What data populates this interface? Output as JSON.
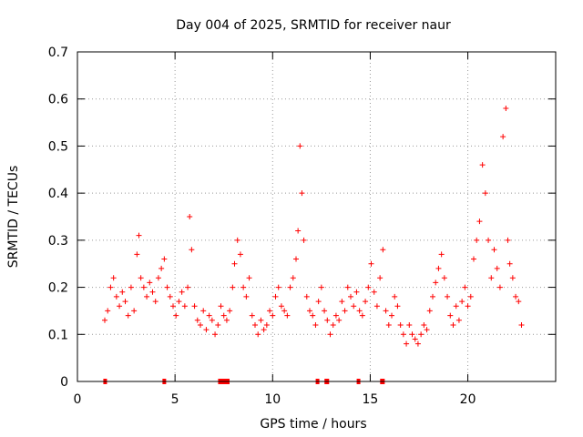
{
  "chart_data": {
    "type": "scatter",
    "title": "Day 004 of 2025, SRMTID for receiver naur",
    "xlabel": "GPS time / hours",
    "ylabel": "SRMTID / TECUs",
    "xlim": [
      0,
      24.5
    ],
    "ylim": [
      0,
      0.7
    ],
    "xticks": [
      0,
      5,
      10,
      15,
      20
    ],
    "xtick_labels": [
      "0",
      "5",
      "10",
      "15",
      "20"
    ],
    "yticks": [
      0,
      0.1,
      0.2,
      0.3,
      0.4,
      0.5,
      0.6,
      0.7
    ],
    "ytick_labels": [
      "0",
      "0.1",
      "0.2",
      "0.3",
      "0.4",
      "0.5",
      "0.6",
      "0.7"
    ],
    "grid": "dotted",
    "marker": "+",
    "color": "#ff0000",
    "series": [
      {
        "name": "SRMTID",
        "x": [
          1.4,
          1.55,
          1.7,
          1.85,
          2.0,
          2.15,
          2.3,
          2.45,
          2.6,
          2.75,
          2.9,
          3.05,
          3.15,
          3.25,
          3.4,
          3.55,
          3.7,
          3.85,
          4.0,
          4.15,
          4.3,
          4.45,
          4.6,
          4.75,
          4.9,
          5.05,
          5.2,
          5.35,
          5.5,
          5.65,
          5.75,
          5.85,
          6.0,
          6.15,
          6.3,
          6.45,
          6.6,
          6.75,
          6.9,
          7.05,
          7.2,
          7.35,
          7.5,
          7.65,
          7.8,
          7.95,
          8.05,
          8.2,
          8.35,
          8.5,
          8.65,
          8.8,
          8.95,
          9.1,
          9.25,
          9.4,
          9.55,
          9.7,
          9.85,
          10.0,
          10.15,
          10.3,
          10.45,
          10.6,
          10.75,
          10.9,
          11.05,
          11.2,
          11.3,
          11.4,
          11.5,
          11.6,
          11.75,
          11.9,
          12.05,
          12.2,
          12.35,
          12.5,
          12.65,
          12.8,
          12.95,
          13.1,
          13.25,
          13.4,
          13.55,
          13.7,
          13.85,
          14.0,
          14.15,
          14.3,
          14.45,
          14.6,
          14.75,
          14.9,
          15.05,
          15.2,
          15.35,
          15.5,
          15.65,
          15.8,
          15.95,
          16.1,
          16.25,
          16.4,
          16.55,
          16.7,
          16.85,
          17.0,
          17.15,
          17.3,
          17.45,
          17.6,
          17.75,
          17.9,
          18.05,
          18.2,
          18.35,
          18.5,
          18.65,
          18.8,
          18.95,
          19.1,
          19.25,
          19.4,
          19.55,
          19.7,
          19.85,
          20.0,
          20.15,
          20.3,
          20.45,
          20.6,
          20.75,
          20.9,
          21.05,
          21.2,
          21.35,
          21.5,
          21.65,
          21.8,
          21.95,
          22.05,
          22.15,
          22.3,
          22.45,
          22.6,
          22.75
        ],
        "y": [
          0.13,
          0.15,
          0.2,
          0.22,
          0.18,
          0.16,
          0.19,
          0.17,
          0.14,
          0.2,
          0.15,
          0.27,
          0.31,
          0.22,
          0.2,
          0.18,
          0.21,
          0.19,
          0.17,
          0.22,
          0.24,
          0.26,
          0.2,
          0.18,
          0.16,
          0.14,
          0.17,
          0.19,
          0.16,
          0.2,
          0.35,
          0.28,
          0.16,
          0.13,
          0.12,
          0.15,
          0.11,
          0.14,
          0.13,
          0.1,
          0.12,
          0.16,
          0.14,
          0.13,
          0.15,
          0.2,
          0.25,
          0.3,
          0.27,
          0.2,
          0.18,
          0.22,
          0.14,
          0.12,
          0.1,
          0.13,
          0.11,
          0.12,
          0.15,
          0.14,
          0.18,
          0.2,
          0.16,
          0.15,
          0.14,
          0.2,
          0.22,
          0.26,
          0.32,
          0.5,
          0.4,
          0.3,
          0.18,
          0.15,
          0.14,
          0.12,
          0.17,
          0.2,
          0.15,
          0.13,
          0.1,
          0.12,
          0.14,
          0.13,
          0.17,
          0.15,
          0.2,
          0.18,
          0.16,
          0.19,
          0.15,
          0.14,
          0.17,
          0.2,
          0.25,
          0.19,
          0.16,
          0.22,
          0.28,
          0.15,
          0.12,
          0.14,
          0.18,
          0.16,
          0.12,
          0.1,
          0.08,
          0.12,
          0.1,
          0.09,
          0.08,
          0.1,
          0.12,
          0.11,
          0.15,
          0.18,
          0.21,
          0.24,
          0.27,
          0.22,
          0.18,
          0.14,
          0.12,
          0.16,
          0.13,
          0.17,
          0.2,
          0.16,
          0.18,
          0.26,
          0.3,
          0.34,
          0.46,
          0.4,
          0.3,
          0.22,
          0.28,
          0.24,
          0.2,
          0.52,
          0.58,
          0.3,
          0.25,
          0.22,
          0.18,
          0.17,
          0.12
        ]
      }
    ],
    "x_rug": [
      1.42,
      4.45,
      7.3,
      7.4,
      7.5,
      7.6,
      7.7,
      12.3,
      12.75,
      12.8,
      14.4,
      15.6,
      15.65
    ]
  }
}
